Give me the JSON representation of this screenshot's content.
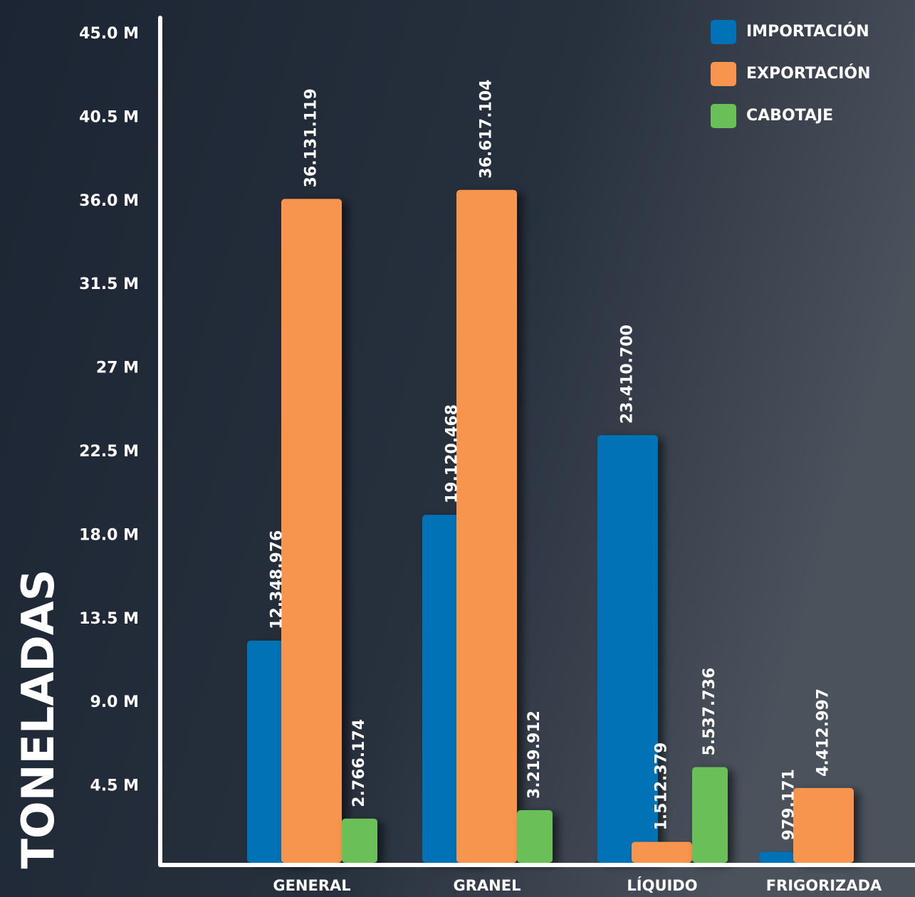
{
  "chart_data": {
    "type": "bar",
    "y_label": "TONELADAS",
    "categories": [
      "GENERAL",
      "GRANEL",
      "LÍQUIDO",
      "FRIGORIZADA"
    ],
    "series": [
      {
        "name": "IMPORTACIÓN",
        "color": "#0072b5",
        "values": [
          12348976,
          19120468,
          23410700,
          979171
        ],
        "value_labels": [
          "12.348.976",
          "19.120.468",
          "23.410.700",
          "979.171"
        ]
      },
      {
        "name": "EXPORTACIÓN",
        "color": "#f7944d",
        "values": [
          36131119,
          36617104,
          1512379,
          4412997
        ],
        "value_labels": [
          "36.131.119",
          "36.617.104",
          "1.512.379",
          "4.412.997"
        ]
      },
      {
        "name": "CABOTAJE",
        "color": "#6bbf59",
        "values": [
          2766174,
          3219912,
          5537736,
          null
        ],
        "value_labels": [
          "2.766.174",
          "3.219.912",
          "5.537.736",
          null
        ]
      }
    ],
    "ylim": [
      0,
      45000000
    ],
    "yticks": [
      {
        "value": 4500000,
        "label": "4.5 M"
      },
      {
        "value": 9000000,
        "label": "9.0 M"
      },
      {
        "value": 13500000,
        "label": "13.5 M"
      },
      {
        "value": 18000000,
        "label": "18.0 M"
      },
      {
        "value": 22500000,
        "label": "22.5 M"
      },
      {
        "value": 27000000,
        "label": "27 M"
      },
      {
        "value": 31500000,
        "label": "31.5 M"
      },
      {
        "value": 36000000,
        "label": "36.0 M"
      },
      {
        "value": 40500000,
        "label": "40.5 M"
      },
      {
        "value": 45000000,
        "label": "45.0 M"
      }
    ],
    "legend": "top-right"
  }
}
